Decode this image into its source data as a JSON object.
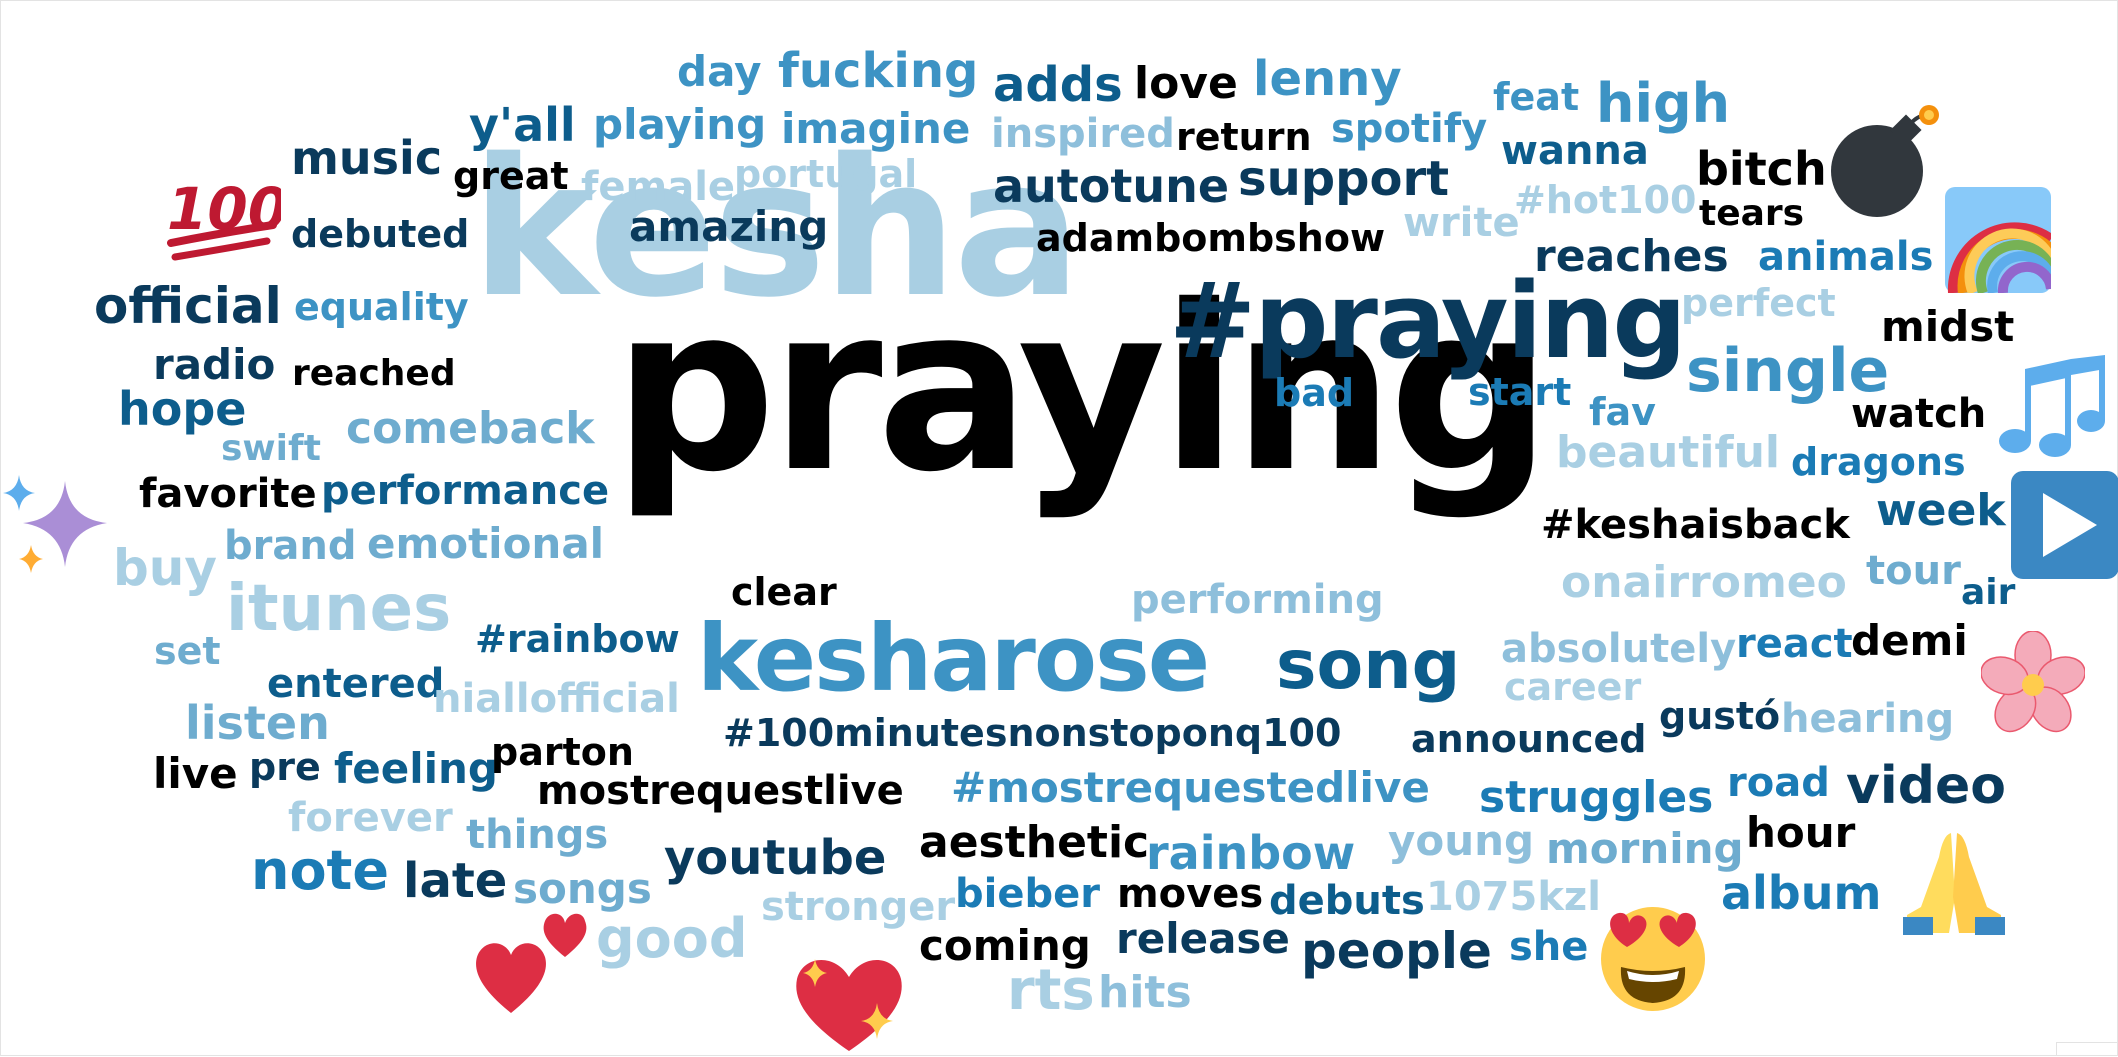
{
  "cloud": {
    "words": [
      {
        "id": "kesha",
        "text": "kesha"
      },
      {
        "id": "praying",
        "text": "praying"
      },
      {
        "id": "hash-praying",
        "text": "#praying"
      },
      {
        "id": "kesharose",
        "text": "kesharose"
      },
      {
        "id": "song",
        "text": "song"
      },
      {
        "id": "single",
        "text": "single"
      },
      {
        "id": "itunes",
        "text": "itunes"
      },
      {
        "id": "video",
        "text": "video"
      },
      {
        "id": "youtube",
        "text": "youtube"
      },
      {
        "id": "note",
        "text": "note"
      },
      {
        "id": "people",
        "text": "people"
      },
      {
        "id": "album",
        "text": "album"
      },
      {
        "id": "rainbow",
        "text": "rainbow"
      },
      {
        "id": "struggles",
        "text": "struggles"
      },
      {
        "id": "hash-mostrequestedlive",
        "text": "#mostrequestedlive"
      },
      {
        "id": "mostrequestlive",
        "text": "mostrequestlive"
      },
      {
        "id": "aesthetic",
        "text": "aesthetic"
      },
      {
        "id": "good",
        "text": "good"
      },
      {
        "id": "rts",
        "text": "rts"
      },
      {
        "id": "official",
        "text": "official"
      },
      {
        "id": "support",
        "text": "support"
      },
      {
        "id": "high",
        "text": "high"
      },
      {
        "id": "fucking",
        "text": "fucking"
      },
      {
        "id": "music",
        "text": "music"
      },
      {
        "id": "yall",
        "text": "y'all"
      },
      {
        "id": "lenny",
        "text": "lenny"
      },
      {
        "id": "love",
        "text": "love"
      },
      {
        "id": "adds",
        "text": "adds"
      },
      {
        "id": "day",
        "text": "day"
      },
      {
        "id": "playing",
        "text": "playing"
      },
      {
        "id": "imagine",
        "text": "imagine"
      },
      {
        "id": "spotify",
        "text": "spotify"
      },
      {
        "id": "feat",
        "text": "feat"
      },
      {
        "id": "inspired",
        "text": "inspired"
      },
      {
        "id": "return",
        "text": "return"
      },
      {
        "id": "wanna",
        "text": "wanna"
      },
      {
        "id": "great",
        "text": "great"
      },
      {
        "id": "female",
        "text": "female"
      },
      {
        "id": "portugal",
        "text": "portugal"
      },
      {
        "id": "autotune",
        "text": "autotune"
      },
      {
        "id": "bitch",
        "text": "bitch"
      },
      {
        "id": "hashot100",
        "text": "#hot100"
      },
      {
        "id": "tears",
        "text": "tears"
      },
      {
        "id": "debuted",
        "text": "debuted"
      },
      {
        "id": "amazing",
        "text": "amazing"
      },
      {
        "id": "adambombshow",
        "text": "adambombshow"
      },
      {
        "id": "write",
        "text": "write"
      },
      {
        "id": "reaches",
        "text": "reaches"
      },
      {
        "id": "animals",
        "text": "animals"
      },
      {
        "id": "equality",
        "text": "equality"
      },
      {
        "id": "perfect",
        "text": "perfect"
      },
      {
        "id": "midst",
        "text": "midst"
      },
      {
        "id": "radio",
        "text": "radio"
      },
      {
        "id": "reached",
        "text": "reached"
      },
      {
        "id": "bad",
        "text": "bad"
      },
      {
        "id": "start",
        "text": "start"
      },
      {
        "id": "hope",
        "text": "hope"
      },
      {
        "id": "fav",
        "text": "fav"
      },
      {
        "id": "watch",
        "text": "watch"
      },
      {
        "id": "swift",
        "text": "swift"
      },
      {
        "id": "comeback",
        "text": "comeback"
      },
      {
        "id": "beautiful",
        "text": "beautiful"
      },
      {
        "id": "dragons",
        "text": "dragons"
      },
      {
        "id": "favorite",
        "text": "favorite"
      },
      {
        "id": "performance",
        "text": "performance"
      },
      {
        "id": "hashkeshaisback",
        "text": "#keshaisback"
      },
      {
        "id": "week",
        "text": "week"
      },
      {
        "id": "buy",
        "text": "buy"
      },
      {
        "id": "brand",
        "text": "brand"
      },
      {
        "id": "emotional",
        "text": "emotional"
      },
      {
        "id": "tour",
        "text": "tour"
      },
      {
        "id": "onairromeo",
        "text": "onairromeo"
      },
      {
        "id": "air",
        "text": "air"
      },
      {
        "id": "clear",
        "text": "clear"
      },
      {
        "id": "performing",
        "text": "performing"
      },
      {
        "id": "set",
        "text": "set"
      },
      {
        "id": "hashrainbow",
        "text": "#rainbow"
      },
      {
        "id": "absolutely",
        "text": "absolutely"
      },
      {
        "id": "react",
        "text": "react"
      },
      {
        "id": "demi",
        "text": "demi"
      },
      {
        "id": "entered",
        "text": "entered"
      },
      {
        "id": "career",
        "text": "career"
      },
      {
        "id": "listen",
        "text": "listen"
      },
      {
        "id": "niallofficial",
        "text": "niallofficial"
      },
      {
        "id": "gusto",
        "text": "gustó"
      },
      {
        "id": "hearing",
        "text": "hearing"
      },
      {
        "id": "hash100minutes",
        "text": "#100minutesnonstoponq100"
      },
      {
        "id": "announced",
        "text": "announced"
      },
      {
        "id": "live",
        "text": "live"
      },
      {
        "id": "pre",
        "text": "pre"
      },
      {
        "id": "feeling",
        "text": "feeling"
      },
      {
        "id": "parton",
        "text": "parton"
      },
      {
        "id": "road",
        "text": "road"
      },
      {
        "id": "forever",
        "text": "forever"
      },
      {
        "id": "things",
        "text": "things"
      },
      {
        "id": "young",
        "text": "young"
      },
      {
        "id": "morning",
        "text": "morning"
      },
      {
        "id": "hour",
        "text": "hour"
      },
      {
        "id": "late",
        "text": "late"
      },
      {
        "id": "songs",
        "text": "songs"
      },
      {
        "id": "stronger",
        "text": "stronger"
      },
      {
        "id": "bieber",
        "text": "bieber"
      },
      {
        "id": "moves",
        "text": "moves"
      },
      {
        "id": "debuts",
        "text": "debuts"
      },
      {
        "id": "1075kzl",
        "text": "1075kzl"
      },
      {
        "id": "coming",
        "text": "coming"
      },
      {
        "id": "release",
        "text": "release"
      },
      {
        "id": "she",
        "text": "she"
      },
      {
        "id": "hits",
        "text": "hits"
      }
    ],
    "emojis": [
      {
        "id": "hundred",
        "name": "hundred-points-icon"
      },
      {
        "id": "bomb",
        "name": "bomb-icon"
      },
      {
        "id": "rainbow",
        "name": "rainbow-icon"
      },
      {
        "id": "notes",
        "name": "musical-notes-icon"
      },
      {
        "id": "sparkles",
        "name": "sparkles-icon"
      },
      {
        "id": "play",
        "name": "play-button-icon"
      },
      {
        "id": "blossom",
        "name": "cherry-blossom-icon"
      },
      {
        "id": "pray",
        "name": "folded-hands-icon"
      },
      {
        "id": "hearts",
        "name": "two-hearts-icon"
      },
      {
        "id": "sparkheart",
        "name": "sparkling-heart-icon"
      },
      {
        "id": "hearteyes",
        "name": "heart-eyes-face-icon"
      }
    ],
    "colors": {
      "black": "#000000",
      "navy": "#0a3a5c",
      "dark_blue": "#0d5d8c",
      "blue": "#1b7bb5",
      "mid_blue": "#3d93c4",
      "light_blue": "#8ebfdb",
      "pale_blue": "#a9cfe3"
    }
  }
}
